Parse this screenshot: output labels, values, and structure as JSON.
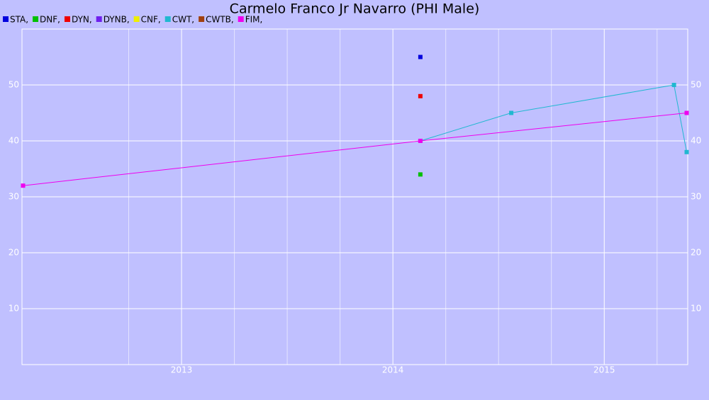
{
  "chart_data": {
    "type": "line",
    "title": "Carmelo Franco Jr Navarro (PHI Male)",
    "series": [
      {
        "name": "STA,",
        "color": "#0000dd",
        "x": [
          2014.13
        ],
        "values": [
          55
        ]
      },
      {
        "name": "DNF,",
        "color": "#00c000",
        "x": [
          2014.13
        ],
        "values": [
          34
        ]
      },
      {
        "name": "DYN,",
        "color": "#ee0000",
        "x": [
          2014.13
        ],
        "values": [
          48
        ]
      },
      {
        "name": "DYNB,",
        "color": "#7020ee",
        "x": [],
        "values": []
      },
      {
        "name": "CNF,",
        "color": "#eeee00",
        "x": [],
        "values": []
      },
      {
        "name": "CWT,",
        "color": "#20b8d0",
        "x": [
          2014.13,
          2014.56,
          2015.33,
          2015.39
        ],
        "values": [
          40,
          45,
          50,
          38
        ]
      },
      {
        "name": "CWTB,",
        "color": "#a04010",
        "x": [],
        "values": []
      },
      {
        "name": "FIM,",
        "color": "#ee00ee",
        "x": [
          2012.25,
          2014.13,
          2015.39
        ],
        "values": [
          32,
          40,
          45
        ]
      }
    ],
    "xlim": [
      2012.245,
      2015.395
    ],
    "xticks": [
      2013,
      2014,
      2015
    ],
    "minor_xticks": [
      2012.75,
      2013.25,
      2013.5,
      2013.75,
      2014.25,
      2014.5,
      2014.75,
      2015.25
    ],
    "ylim": [
      0,
      60
    ],
    "yticks": [
      10,
      20,
      30,
      40,
      50
    ],
    "grid": true
  }
}
